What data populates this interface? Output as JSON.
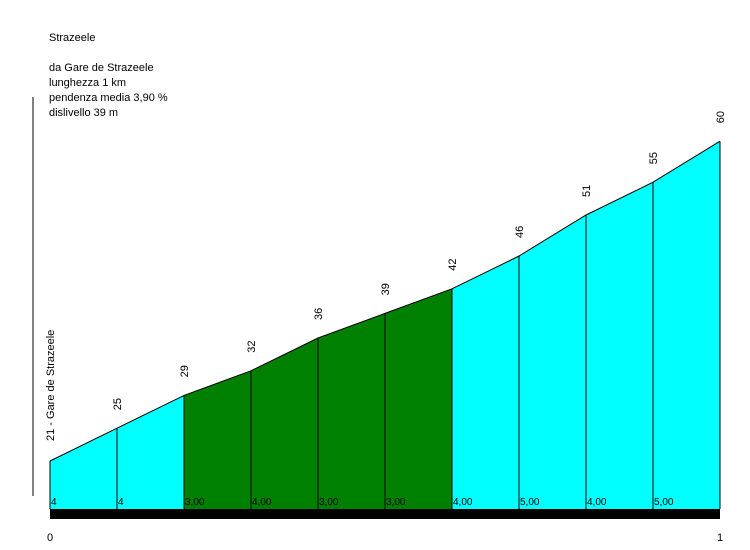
{
  "header": {
    "climb_name": "Strazeele",
    "start_text": "da Gare de Strazeele",
    "length_text": "lunghezza 1 km",
    "gradient_text": "pendenza media 3,90 %",
    "elevation_gain_text": "dislivello 39 m"
  },
  "chart_data": {
    "type": "area",
    "title": "Strazeele",
    "x_unit": "km",
    "x_tick_labels": [
      "0",
      "1"
    ],
    "xlim": [
      0,
      1
    ],
    "start_label": "21 - Gare de Strazeele",
    "x": [
      0,
      0.1,
      0.2,
      0.3,
      0.4,
      0.5,
      0.6,
      0.7,
      0.8,
      0.9,
      1.0
    ],
    "altitudes": [
      21,
      25,
      29,
      32,
      36,
      39,
      42,
      46,
      51,
      55,
      60
    ],
    "altitude_labels": [
      "25",
      "29",
      "32",
      "36",
      "39",
      "42",
      "46",
      "51",
      "55",
      "60"
    ],
    "segment_gradients": [
      "4",
      "4",
      "3,00",
      "4,00",
      "3,00",
      "3,00",
      "4,00",
      "5,00",
      "4,00",
      "5,00"
    ],
    "segment_colors": [
      "#00ffff",
      "#00ffff",
      "#008000",
      "#008000",
      "#008000",
      "#008000",
      "#00ffff",
      "#00ffff",
      "#00ffff",
      "#00ffff"
    ]
  }
}
